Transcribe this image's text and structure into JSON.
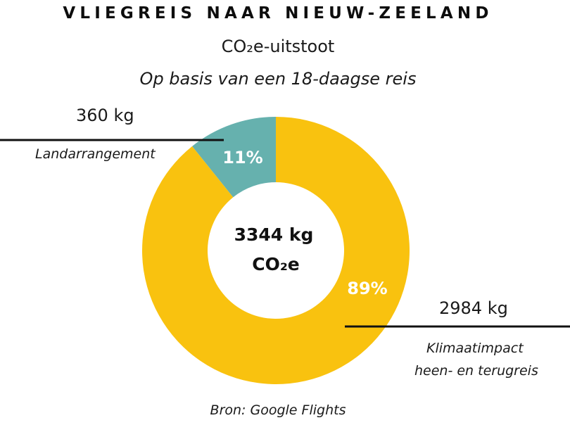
{
  "title": "VLIEGREIS NAAR NIEUW-ZEELAND",
  "subtitle": "CO₂e-uitstoot",
  "subtitle2": "Op basis van een 18-daagse reis",
  "center": {
    "line1": "3344 kg",
    "line2": "CO₂e"
  },
  "source": "Bron: Google Flights",
  "colors": {
    "flight": "#F9C20F",
    "land": "#66B1AE"
  },
  "chart_data": {
    "type": "pie",
    "total": "3344 kg CO₂e",
    "slices": [
      {
        "label": "Landarrangement",
        "value": 360,
        "value_label": "360 kg",
        "percent": 11,
        "percent_label": "11%"
      },
      {
        "label": "Klimaatimpact heen- en terugreis",
        "value": 2984,
        "value_label": "2984 kg",
        "percent": 89,
        "percent_label": "89%"
      }
    ]
  },
  "labels": {
    "land_value": "360 kg",
    "land_name": "Landarrangement",
    "flight_value": "2984 kg",
    "flight_name_line1": "Klimaatimpact",
    "flight_name_line2": "heen- en terugreis",
    "land_pct": "11%",
    "flight_pct": "89%"
  }
}
